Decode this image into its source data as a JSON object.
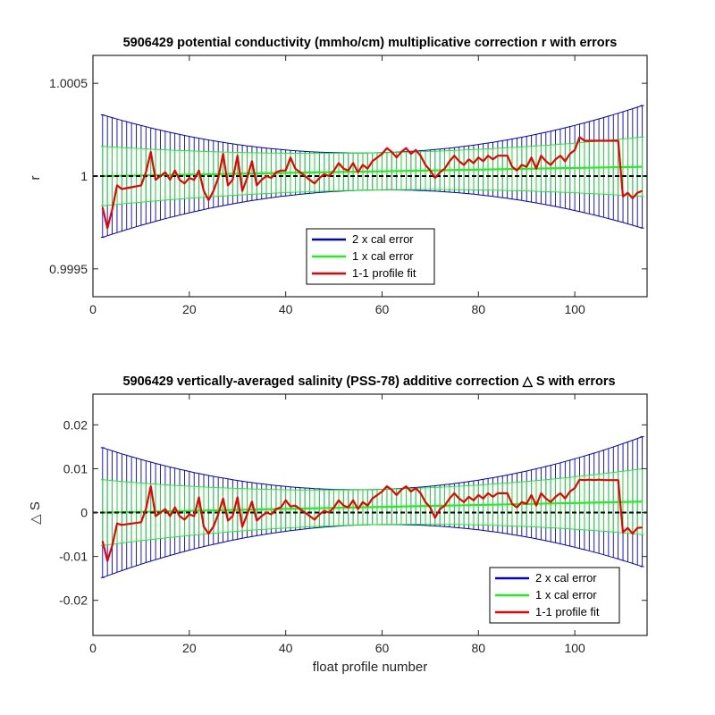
{
  "chart_data": [
    {
      "type": "line",
      "title": "5906429 potential conductivity (mmho/cm) multiplicative correction r with errors",
      "xlabel": "",
      "ylabel": "r",
      "xlim": [
        0,
        115
      ],
      "ylim": [
        0.99935,
        1.00065
      ],
      "xticks": [
        0,
        20,
        40,
        60,
        80,
        100
      ],
      "xtick_labels": [
        "0",
        "20",
        "40",
        "60",
        "80",
        "100"
      ],
      "yticks": [
        0.9995,
        1.0,
        1.0005
      ],
      "ytick_labels": [
        "0.9995",
        "1",
        "1.0005"
      ],
      "grid": false,
      "legend_position": "lower-center",
      "legend": [
        {
          "label": "2 x cal error",
          "color": "#0000cc"
        },
        {
          "label": "1 x cal error",
          "color": "#22ee22"
        },
        {
          "label": "1-1 profile fit",
          "color": "#ee0000"
        }
      ],
      "x_range": [
        2,
        114
      ],
      "reference_line_y": 1.0,
      "cal_fit": {
        "start": 1.0,
        "end": 1.00005
      },
      "error_1x": {
        "edge": 0.00016,
        "middle": 0.0001
      },
      "error_2x": {
        "edge": 0.00033,
        "middle": 0.0001
      },
      "series": [
        {
          "color": "#ee0000",
          "x": [
            2,
            3,
            4,
            5,
            6,
            8,
            10,
            11,
            12,
            13,
            14,
            15,
            16,
            17,
            18,
            19,
            20,
            21,
            22,
            23,
            24,
            25,
            26,
            27,
            28,
            29,
            30,
            31,
            32,
            33,
            34,
            35,
            36,
            37,
            38,
            39,
            40,
            41,
            42,
            43,
            44,
            45,
            46,
            47,
            48,
            49,
            50,
            51,
            52,
            53,
            54,
            55,
            56,
            57,
            58,
            59,
            60,
            61,
            62,
            63,
            64,
            65,
            66,
            67,
            68,
            69,
            70,
            71,
            72,
            73,
            74,
            75,
            76,
            77,
            78,
            79,
            80,
            81,
            82,
            83,
            84,
            85,
            86,
            87,
            88,
            89,
            90,
            91,
            92,
            93,
            94,
            95,
            96,
            97,
            98,
            99,
            100,
            101,
            102,
            103,
            104,
            105,
            106,
            107,
            108,
            109,
            110,
            111,
            112,
            113,
            114
          ],
          "values": [
            0.99983,
            0.99972,
            0.99982,
            0.99995,
            0.99993,
            0.99994,
            0.99995,
            1.00002,
            1.00013,
            0.99998,
            1.0,
            1.00002,
            0.99998,
            1.00003,
            0.99998,
            0.99996,
            0.99999,
            0.99998,
            1.00003,
            0.99992,
            0.99987,
            0.99992,
            0.99999,
            1.00012,
            0.99995,
            0.99998,
            1.00011,
            0.99992,
            0.99999,
            1.00008,
            0.99995,
            0.99998,
            1.0,
            0.99999,
            1.00002,
            1.00003,
            1.00003,
            1.0001,
            1.00004,
            1.00002,
            1.0,
            0.99998,
            0.99996,
            0.99999,
            1.00001,
            1.0,
            1.00003,
            1.00007,
            1.00004,
            1.00003,
            1.00007,
            1.00002,
            1.00006,
            1.00004,
            1.00008,
            1.0001,
            1.00012,
            1.00015,
            1.00013,
            1.0001,
            1.00013,
            1.00015,
            1.00012,
            1.00014,
            1.00011,
            1.00006,
            1.00003,
            0.99999,
            1.00002,
            1.00004,
            1.00008,
            1.00011,
            1.00008,
            1.00006,
            1.00009,
            1.00007,
            1.0001,
            1.00008,
            1.00011,
            1.00009,
            1.00011,
            1.00011,
            1.00011,
            1.00005,
            1.00003,
            1.00006,
            1.00005,
            1.0001,
            1.00004,
            1.00011,
            1.00008,
            1.00006,
            1.00009,
            1.00011,
            1.00008,
            1.00012,
            1.00014,
            1.00021,
            1.00019,
            1.00019,
            1.00019,
            1.00019,
            1.00019,
            1.00019,
            1.00019,
            1.00019,
            0.99989,
            0.99991,
            0.99988,
            0.99991,
            0.99992
          ]
        }
      ]
    },
    {
      "type": "line",
      "title": "5906429 vertically-averaged salinity (PSS-78) additive correction △ S with errors",
      "xlabel": "float profile number",
      "ylabel": "△ S",
      "xlim": [
        0,
        115
      ],
      "ylim": [
        -0.028,
        0.027
      ],
      "xticks": [
        0,
        20,
        40,
        60,
        80,
        100
      ],
      "xtick_labels": [
        "0",
        "20",
        "40",
        "60",
        "80",
        "100"
      ],
      "yticks": [
        -0.02,
        -0.01,
        0,
        0.01,
        0.02
      ],
      "ytick_labels": [
        "-0.02",
        "-0.01",
        "0",
        "0.01",
        "0.02"
      ],
      "grid": false,
      "legend_position": "lower-right",
      "legend": [
        {
          "label": "2 x cal error",
          "color": "#0000cc"
        },
        {
          "label": "1 x cal error",
          "color": "#22ee22"
        },
        {
          "label": "1-1 profile fit",
          "color": "#ee0000"
        }
      ],
      "x_range": [
        2,
        114
      ],
      "reference_line_y": 0,
      "cal_fit": {
        "start": 0.0,
        "end": 0.0025
      },
      "error_1x": {
        "edge": 0.0075,
        "middle": 0.004
      },
      "error_2x": {
        "edge": 0.0148,
        "middle": 0.004
      },
      "series": [
        {
          "color": "#ee0000",
          "x": [
            2,
            3,
            4,
            5,
            6,
            8,
            10,
            11,
            12,
            13,
            14,
            15,
            16,
            17,
            18,
            19,
            20,
            21,
            22,
            23,
            24,
            25,
            26,
            27,
            28,
            29,
            30,
            31,
            32,
            33,
            34,
            35,
            36,
            37,
            38,
            39,
            40,
            41,
            42,
            43,
            44,
            45,
            46,
            47,
            48,
            49,
            50,
            51,
            52,
            53,
            54,
            55,
            56,
            57,
            58,
            59,
            60,
            61,
            62,
            63,
            64,
            65,
            66,
            67,
            68,
            69,
            70,
            71,
            72,
            73,
            74,
            75,
            76,
            77,
            78,
            79,
            80,
            81,
            82,
            83,
            84,
            85,
            86,
            87,
            88,
            89,
            90,
            91,
            92,
            93,
            94,
            95,
            96,
            97,
            98,
            99,
            100,
            101,
            102,
            103,
            104,
            105,
            106,
            107,
            108,
            109,
            110,
            111,
            112,
            113,
            114
          ],
          "values": [
            -0.0065,
            -0.011,
            -0.0075,
            -0.0025,
            -0.0028,
            -0.0025,
            -0.0022,
            0.0008,
            0.006,
            -0.0008,
            0.0,
            0.0008,
            -0.0008,
            0.0012,
            -0.0008,
            -0.0016,
            -0.0004,
            -0.0008,
            0.0035,
            -0.0032,
            -0.0048,
            -0.0032,
            -0.0004,
            0.0032,
            -0.0018,
            -0.0008,
            0.0035,
            -0.0032,
            -0.0004,
            0.0025,
            -0.0018,
            -0.0008,
            0.0,
            -0.0004,
            0.0008,
            0.0012,
            0.0028,
            0.0014,
            0.0016,
            0.0008,
            0.0,
            -0.0008,
            -0.0016,
            -0.0004,
            0.0004,
            0.0,
            0.0012,
            0.0028,
            0.0016,
            0.0012,
            0.0028,
            0.0008,
            0.0024,
            0.0016,
            0.0032,
            0.004,
            0.0048,
            0.006,
            0.0052,
            0.004,
            0.0052,
            0.006,
            0.0048,
            0.0056,
            0.0044,
            0.0024,
            0.0012,
            -0.0012,
            0.0008,
            0.0016,
            0.0032,
            0.0044,
            0.0032,
            0.0024,
            0.0036,
            0.0028,
            0.004,
            0.0032,
            0.0044,
            0.0036,
            0.0044,
            0.0044,
            0.0044,
            0.002,
            0.0012,
            0.0024,
            0.002,
            0.004,
            0.0016,
            0.0044,
            0.0032,
            0.0024,
            0.0036,
            0.0044,
            0.0032,
            0.0048,
            0.0056,
            0.0075,
            0.0074,
            0.0075,
            0.0074,
            0.0075,
            0.0074,
            0.0074,
            0.0074,
            0.0074,
            -0.0045,
            -0.0035,
            -0.0048,
            -0.0035,
            -0.0034
          ]
        }
      ]
    }
  ]
}
